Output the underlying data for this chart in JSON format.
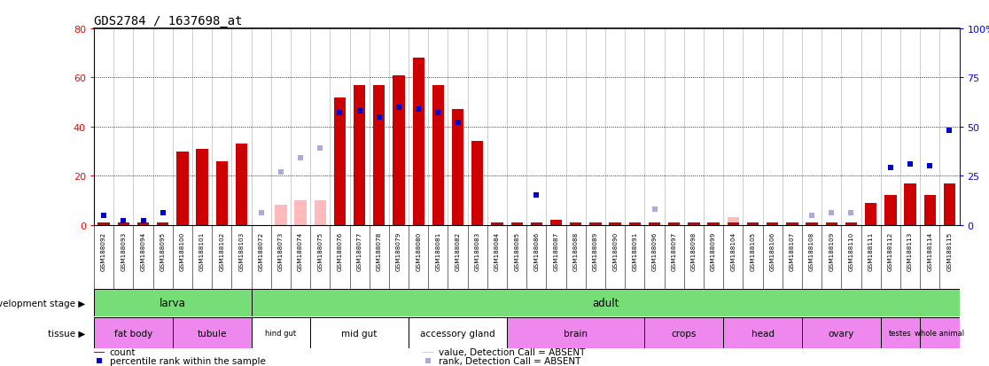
{
  "title": "GDS2784 / 1637698_at",
  "samples": [
    "GSM188092",
    "GSM188093",
    "GSM188094",
    "GSM188095",
    "GSM188100",
    "GSM188101",
    "GSM188102",
    "GSM188103",
    "GSM188072",
    "GSM188073",
    "GSM188074",
    "GSM188075",
    "GSM188076",
    "GSM188077",
    "GSM188078",
    "GSM188079",
    "GSM188080",
    "GSM188081",
    "GSM188082",
    "GSM188083",
    "GSM188084",
    "GSM188085",
    "GSM188086",
    "GSM188087",
    "GSM188088",
    "GSM188089",
    "GSM188090",
    "GSM188091",
    "GSM188096",
    "GSM188097",
    "GSM188098",
    "GSM188099",
    "GSM188104",
    "GSM188105",
    "GSM188106",
    "GSM188107",
    "GSM188108",
    "GSM188109",
    "GSM188110",
    "GSM188111",
    "GSM188112",
    "GSM188113",
    "GSM188114",
    "GSM188115"
  ],
  "count_values": [
    1,
    1,
    1,
    1,
    30,
    31,
    26,
    33,
    null,
    null,
    null,
    null,
    52,
    57,
    57,
    61,
    68,
    57,
    47,
    34,
    1,
    1,
    1,
    2,
    1,
    1,
    1,
    1,
    1,
    1,
    1,
    1,
    1,
    1,
    1,
    1,
    1,
    1,
    1,
    9,
    12,
    17,
    12,
    17
  ],
  "rank_values": [
    5,
    2,
    2,
    6,
    null,
    null,
    null,
    null,
    null,
    null,
    null,
    null,
    57,
    58,
    55,
    60,
    59,
    57,
    52,
    null,
    null,
    null,
    15,
    null,
    null,
    null,
    null,
    null,
    null,
    null,
    null,
    null,
    null,
    null,
    null,
    null,
    null,
    null,
    null,
    null,
    29,
    31,
    30,
    48
  ],
  "absent_count_values": [
    null,
    null,
    null,
    null,
    null,
    null,
    null,
    null,
    null,
    8,
    10,
    10,
    null,
    null,
    null,
    null,
    null,
    null,
    null,
    null,
    null,
    null,
    null,
    null,
    null,
    null,
    null,
    null,
    null,
    null,
    null,
    null,
    3,
    null,
    null,
    null,
    null,
    null,
    null,
    null,
    null,
    null,
    null,
    null
  ],
  "absent_rank_values": [
    null,
    null,
    null,
    null,
    null,
    null,
    null,
    null,
    6,
    27,
    34,
    39,
    null,
    null,
    null,
    null,
    null,
    null,
    null,
    null,
    null,
    null,
    null,
    null,
    null,
    null,
    null,
    null,
    8,
    null,
    null,
    null,
    null,
    null,
    null,
    null,
    5,
    6,
    6,
    null,
    null,
    null,
    null,
    null
  ],
  "ylim_left": [
    0,
    80
  ],
  "ylim_right": [
    0,
    100
  ],
  "yticks_left": [
    0,
    20,
    40,
    60,
    80
  ],
  "yticks_right": [
    0,
    25,
    50,
    75,
    100
  ],
  "bar_color": "#cc0000",
  "rank_color": "#0000cc",
  "absent_count_color": "#ffbbbb",
  "absent_rank_color": "#aaaadd",
  "plot_bg": "#ffffff",
  "xlabel_bg": "#d8d8d8",
  "development_stages": [
    {
      "label": "larva",
      "start": 0,
      "end": 7
    },
    {
      "label": "adult",
      "start": 8,
      "end": 43
    }
  ],
  "tissues": [
    {
      "label": "fat body",
      "start": 0,
      "end": 3,
      "color": "#ee88ee"
    },
    {
      "label": "tubule",
      "start": 4,
      "end": 7,
      "color": "#ee88ee"
    },
    {
      "label": "hind gut",
      "start": 8,
      "end": 10,
      "color": "#ffffff"
    },
    {
      "label": "mid gut",
      "start": 11,
      "end": 15,
      "color": "#ffffff"
    },
    {
      "label": "accessory gland",
      "start": 16,
      "end": 20,
      "color": "#ffffff"
    },
    {
      "label": "brain",
      "start": 21,
      "end": 27,
      "color": "#ee88ee"
    },
    {
      "label": "crops",
      "start": 28,
      "end": 31,
      "color": "#ee88ee"
    },
    {
      "label": "head",
      "start": 32,
      "end": 35,
      "color": "#ee88ee"
    },
    {
      "label": "ovary",
      "start": 36,
      "end": 39,
      "color": "#ee88ee"
    },
    {
      "label": "testes",
      "start": 40,
      "end": 41,
      "color": "#ee88ee"
    },
    {
      "label": "whole animal",
      "start": 42,
      "end": 43,
      "color": "#ee88ee"
    }
  ]
}
